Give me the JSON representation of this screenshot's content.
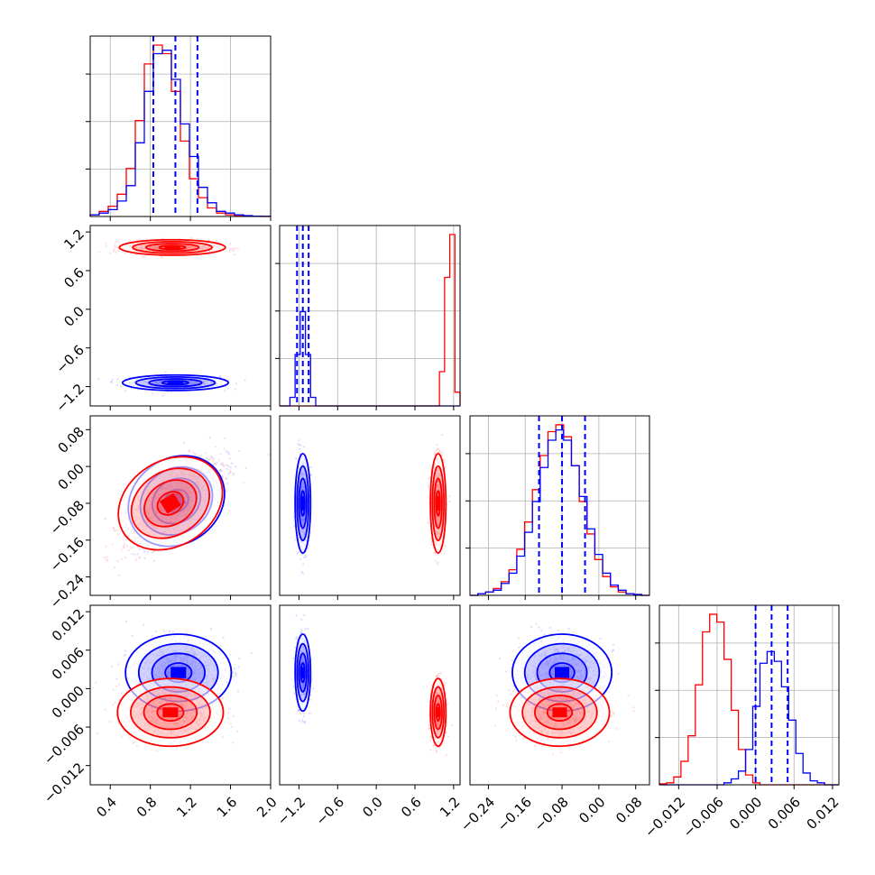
{
  "chart_data": {
    "type": "corner",
    "grid": true,
    "colors": {
      "series_a": "#0000ff",
      "series_b": "#ff0000"
    },
    "series": [
      {
        "color": "#0000ff"
      },
      {
        "color": "#ff0000"
      }
    ],
    "parameters": [
      {
        "range": [
          0.2,
          2.0
        ],
        "ticks": [
          0.4,
          0.8,
          1.2,
          1.6,
          2.0
        ],
        "tick_labels": [
          "0.4",
          "0.8",
          "1.2",
          "1.6",
          "2.0"
        ]
      },
      {
        "range": [
          -1.5,
          1.3
        ],
        "ticks": [
          -1.2,
          -0.6,
          0.0,
          0.6,
          1.2
        ],
        "tick_labels": [
          "−1.2",
          "−0.6",
          "0.0",
          "0.6",
          "1.2"
        ]
      },
      {
        "range": [
          -0.28,
          0.11
        ],
        "ticks": [
          -0.24,
          -0.16,
          -0.08,
          0.0,
          0.08
        ],
        "tick_labels": [
          "−0.24",
          "−0.16",
          "−0.08",
          "0.00",
          "0.08"
        ]
      },
      {
        "range": [
          -0.015,
          0.013
        ],
        "ticks": [
          -0.012,
          -0.006,
          0.0,
          0.006,
          0.012
        ],
        "tick_labels": [
          "−0.012",
          "−0.006",
          "0.000",
          "0.006",
          "0.012"
        ]
      }
    ],
    "marginals": [
      {
        "a": {
          "values": [
            0.01,
            0.02,
            0.04,
            0.09,
            0.18,
            0.43,
            0.73,
            0.95,
            0.97,
            0.8,
            0.54,
            0.35,
            0.17,
            0.08,
            0.03,
            0.02,
            0.01,
            0.005,
            0.002,
            0.001
          ],
          "quantiles": [
            0.83,
            1.05,
            1.27
          ]
        },
        "b": {
          "values": [
            0.01,
            0.03,
            0.06,
            0.13,
            0.28,
            0.56,
            0.89,
            1.0,
            0.95,
            0.73,
            0.44,
            0.22,
            0.11,
            0.05,
            0.02,
            0.01,
            0.005,
            0.002,
            0.001,
            0.0
          ]
        }
      },
      {
        "a": {
          "values": [
            0,
            0,
            0.05,
            0.3,
            0.55,
            0.3,
            0.05,
            0,
            0,
            0,
            0,
            0,
            0,
            0,
            0,
            0,
            0,
            0,
            0,
            0,
            0,
            0,
            0,
            0,
            0,
            0,
            0,
            0,
            0,
            0,
            0,
            0,
            0,
            0,
            0
          ],
          "quantiles": [
            -1.23,
            -1.14,
            -1.05
          ]
        },
        "b": {
          "values": [
            0,
            0,
            0,
            0,
            0,
            0,
            0,
            0,
            0,
            0,
            0,
            0,
            0,
            0,
            0,
            0,
            0,
            0,
            0,
            0,
            0,
            0,
            0,
            0,
            0,
            0,
            0,
            0,
            0,
            0,
            0,
            0.2,
            0.75,
            1.0,
            0.08
          ]
        }
      },
      {
        "a": {
          "values": [
            0.0,
            0.01,
            0.02,
            0.03,
            0.07,
            0.13,
            0.23,
            0.37,
            0.55,
            0.75,
            0.91,
            0.97,
            0.91,
            0.76,
            0.58,
            0.39,
            0.24,
            0.13,
            0.06,
            0.03,
            0.01,
            0.005,
            0.0
          ],
          "quantiles": [
            -0.13,
            -0.08,
            -0.03
          ]
        },
        "b": {
          "values": [
            0.0,
            0.01,
            0.02,
            0.04,
            0.08,
            0.15,
            0.27,
            0.43,
            0.62,
            0.82,
            0.96,
            1.0,
            0.93,
            0.76,
            0.55,
            0.36,
            0.21,
            0.11,
            0.05,
            0.02,
            0.01,
            0.005,
            0.0
          ]
        }
      },
      {
        "a": {
          "values": [
            0,
            0,
            0,
            0,
            0,
            0,
            0,
            0,
            0,
            0.01,
            0.03,
            0.07,
            0.18,
            0.4,
            0.62,
            0.68,
            0.63,
            0.5,
            0.33,
            0.16,
            0.06,
            0.02,
            0.01,
            0.0,
            0.0
          ],
          "quantiles": [
            0.0,
            0.0025,
            0.005
          ]
        },
        "b": {
          "values": [
            0.005,
            0.01,
            0.04,
            0.12,
            0.25,
            0.51,
            0.78,
            0.87,
            0.83,
            0.64,
            0.38,
            0.18,
            0.05,
            0.01,
            0,
            0,
            0,
            0,
            0,
            0,
            0,
            0,
            0,
            0,
            0
          ]
        }
      }
    ],
    "joint": [
      {
        "x": 0,
        "y": 1,
        "a": {
          "mean": [
            1.05,
            -1.14
          ],
          "sd": [
            0.22,
            0.05
          ],
          "rho": 0.0
        },
        "b": {
          "mean": [
            1.02,
            0.96
          ],
          "sd": [
            0.22,
            0.05
          ],
          "rho": 0.0
        }
      },
      {
        "x": 0,
        "y": 2,
        "a": {
          "mean": [
            1.06,
            -0.075
          ],
          "sd": [
            0.21,
            0.045
          ],
          "rho": 0.7
        },
        "b": {
          "mean": [
            1.0,
            -0.08
          ],
          "sd": [
            0.23,
            0.045
          ],
          "rho": 0.7
        }
      },
      {
        "x": 1,
        "y": 2,
        "a": {
          "mean": [
            -1.14,
            -0.08
          ],
          "sd": [
            0.05,
            0.045
          ],
          "rho": 0.0
        },
        "b": {
          "mean": [
            0.96,
            -0.08
          ],
          "sd": [
            0.05,
            0.045
          ],
          "rho": 0.0
        }
      },
      {
        "x": 0,
        "y": 3,
        "a": {
          "mean": [
            1.08,
            0.0025
          ],
          "sd": [
            0.22,
            0.0025
          ],
          "rho": 0.0
        },
        "b": {
          "mean": [
            1.0,
            -0.0037
          ],
          "sd": [
            0.22,
            0.0022
          ],
          "rho": 0.0
        }
      },
      {
        "x": 1,
        "y": 3,
        "a": {
          "mean": [
            -1.14,
            0.0025
          ],
          "sd": [
            0.05,
            0.0025
          ],
          "rho": 0.0
        },
        "b": {
          "mean": [
            0.96,
            -0.0037
          ],
          "sd": [
            0.05,
            0.0022
          ],
          "rho": 0.0
        }
      },
      {
        "x": 2,
        "y": 3,
        "a": {
          "mean": [
            -0.08,
            0.0025
          ],
          "sd": [
            0.045,
            0.0025
          ],
          "rho": 0.0
        },
        "b": {
          "mean": [
            -0.085,
            -0.0037
          ],
          "sd": [
            0.045,
            0.0022
          ],
          "rho": 0.0
        }
      }
    ]
  }
}
